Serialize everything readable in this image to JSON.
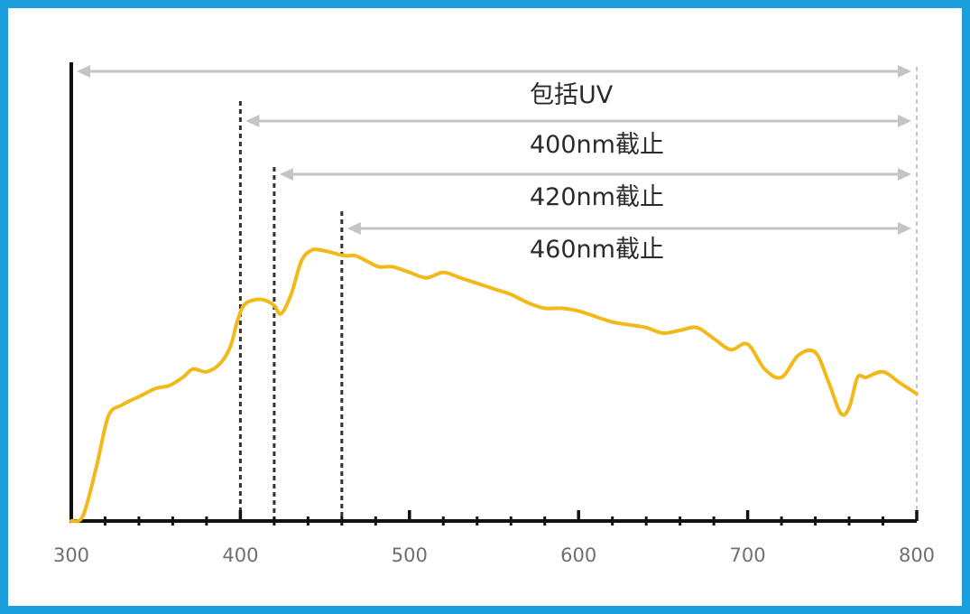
{
  "chart_data": {
    "type": "line",
    "title": "",
    "xlabel": "",
    "ylabel": "",
    "xlim": [
      300,
      800
    ],
    "x_ticks": [
      300,
      400,
      500,
      600,
      700,
      800
    ],
    "x_tick_labels": [
      "300",
      "400",
      "500",
      "600",
      "700",
      "800"
    ],
    "grid": false,
    "series": [
      {
        "color": "#f2b91a",
        "x": [
          300,
          307,
          315,
          322,
          330,
          340,
          350,
          358,
          366,
          372,
          380,
          388,
          394,
          398,
          402,
          408,
          414,
          420,
          424,
          430,
          436,
          442,
          448,
          455,
          462,
          468,
          475,
          482,
          490,
          500,
          510,
          520,
          530,
          540,
          550,
          560,
          570,
          580,
          590,
          600,
          610,
          620,
          630,
          640,
          650,
          660,
          670,
          680,
          690,
          700,
          710,
          720,
          730,
          740,
          748,
          755,
          760,
          765,
          770,
          780,
          790,
          800
        ],
        "y": [
          0.0,
          0.02,
          0.2,
          0.38,
          0.42,
          0.45,
          0.48,
          0.49,
          0.52,
          0.55,
          0.54,
          0.57,
          0.63,
          0.72,
          0.78,
          0.8,
          0.8,
          0.78,
          0.75,
          0.82,
          0.94,
          0.98,
          0.98,
          0.97,
          0.96,
          0.96,
          0.94,
          0.92,
          0.92,
          0.9,
          0.88,
          0.9,
          0.88,
          0.86,
          0.84,
          0.82,
          0.79,
          0.77,
          0.77,
          0.76,
          0.74,
          0.72,
          0.71,
          0.7,
          0.68,
          0.69,
          0.7,
          0.66,
          0.62,
          0.64,
          0.55,
          0.52,
          0.6,
          0.61,
          0.5,
          0.39,
          0.41,
          0.52,
          0.52,
          0.54,
          0.5,
          0.46
        ]
      }
    ],
    "cutoff_ranges": [
      {
        "label": "包括UV",
        "start": 300,
        "end": 800,
        "line": false
      },
      {
        "label": "400nm截止",
        "start": 400,
        "end": 800,
        "line": true
      },
      {
        "label": "420nm截止",
        "start": 420,
        "end": 800,
        "line": true
      },
      {
        "label": "460nm截止",
        "start": 460,
        "end": 800,
        "line": true
      }
    ],
    "colors": {
      "frame": "#1a9fdc",
      "curve": "#f2b91a",
      "arrow": "#c4c4c4",
      "axis": "#111111",
      "cutoff": "#333333",
      "tick_label": "#6f6f6f"
    }
  }
}
